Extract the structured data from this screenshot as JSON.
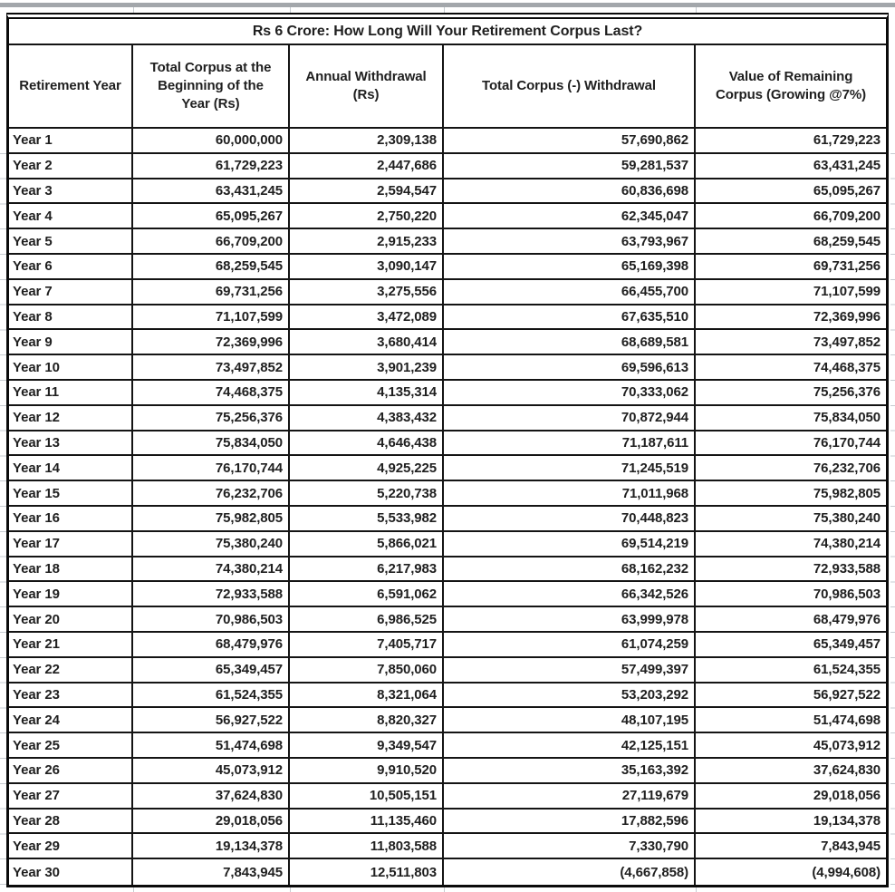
{
  "page": {
    "background": "#ffffff",
    "gridline_color": "#c6cbd0",
    "top_band_color": "#a3a7ab",
    "table_border_color": "#0a0a0a",
    "text_color": "#1f1f1f"
  },
  "chart_data": {
    "type": "table",
    "title": "Rs 6 Crore: How Long Will Your Retirement Corpus Last?",
    "columns": [
      "Retirement Year",
      "Total Corpus at the Beginning of the Year (Rs)",
      "Annual Withdrawal (Rs)",
      "Total Corpus (-) Withdrawal",
      "Value of Remaining Corpus (Growing @7%)"
    ],
    "rows": [
      [
        "Year 1",
        "60,000,000",
        "2,309,138",
        "57,690,862",
        "61,729,223"
      ],
      [
        "Year 2",
        "61,729,223",
        "2,447,686",
        "59,281,537",
        "63,431,245"
      ],
      [
        "Year 3",
        "63,431,245",
        "2,594,547",
        "60,836,698",
        "65,095,267"
      ],
      [
        "Year 4",
        "65,095,267",
        "2,750,220",
        "62,345,047",
        "66,709,200"
      ],
      [
        "Year 5",
        "66,709,200",
        "2,915,233",
        "63,793,967",
        "68,259,545"
      ],
      [
        "Year 6",
        "68,259,545",
        "3,090,147",
        "65,169,398",
        "69,731,256"
      ],
      [
        "Year 7",
        "69,731,256",
        "3,275,556",
        "66,455,700",
        "71,107,599"
      ],
      [
        "Year 8",
        "71,107,599",
        "3,472,089",
        "67,635,510",
        "72,369,996"
      ],
      [
        "Year 9",
        "72,369,996",
        "3,680,414",
        "68,689,581",
        "73,497,852"
      ],
      [
        "Year 10",
        "73,497,852",
        "3,901,239",
        "69,596,613",
        "74,468,375"
      ],
      [
        "Year 11",
        "74,468,375",
        "4,135,314",
        "70,333,062",
        "75,256,376"
      ],
      [
        "Year 12",
        "75,256,376",
        "4,383,432",
        "70,872,944",
        "75,834,050"
      ],
      [
        "Year 13",
        "75,834,050",
        "4,646,438",
        "71,187,611",
        "76,170,744"
      ],
      [
        "Year 14",
        "76,170,744",
        "4,925,225",
        "71,245,519",
        "76,232,706"
      ],
      [
        "Year 15",
        "76,232,706",
        "5,220,738",
        "71,011,968",
        "75,982,805"
      ],
      [
        "Year 16",
        "75,982,805",
        "5,533,982",
        "70,448,823",
        "75,380,240"
      ],
      [
        "Year 17",
        "75,380,240",
        "5,866,021",
        "69,514,219",
        "74,380,214"
      ],
      [
        "Year 18",
        "74,380,214",
        "6,217,983",
        "68,162,232",
        "72,933,588"
      ],
      [
        "Year 19",
        "72,933,588",
        "6,591,062",
        "66,342,526",
        "70,986,503"
      ],
      [
        "Year 20",
        "70,986,503",
        "6,986,525",
        "63,999,978",
        "68,479,976"
      ],
      [
        "Year 21",
        "68,479,976",
        "7,405,717",
        "61,074,259",
        "65,349,457"
      ],
      [
        "Year 22",
        "65,349,457",
        "7,850,060",
        "57,499,397",
        "61,524,355"
      ],
      [
        "Year 23",
        "61,524,355",
        "8,321,064",
        "53,203,292",
        "56,927,522"
      ],
      [
        "Year 24",
        "56,927,522",
        "8,820,327",
        "48,107,195",
        "51,474,698"
      ],
      [
        "Year 25",
        "51,474,698",
        "9,349,547",
        "42,125,151",
        "45,073,912"
      ],
      [
        "Year 26",
        "45,073,912",
        "9,910,520",
        "35,163,392",
        "37,624,830"
      ],
      [
        "Year 27",
        "37,624,830",
        "10,505,151",
        "27,119,679",
        "29,018,056"
      ],
      [
        "Year 28",
        "29,018,056",
        "11,135,460",
        "17,882,596",
        "19,134,378"
      ],
      [
        "Year 29",
        "19,134,378",
        "11,803,588",
        "7,330,790",
        "7,843,945"
      ],
      [
        "Year 30",
        "7,843,945",
        "12,511,803",
        "(4,667,858)",
        "(4,994,608)"
      ]
    ]
  }
}
